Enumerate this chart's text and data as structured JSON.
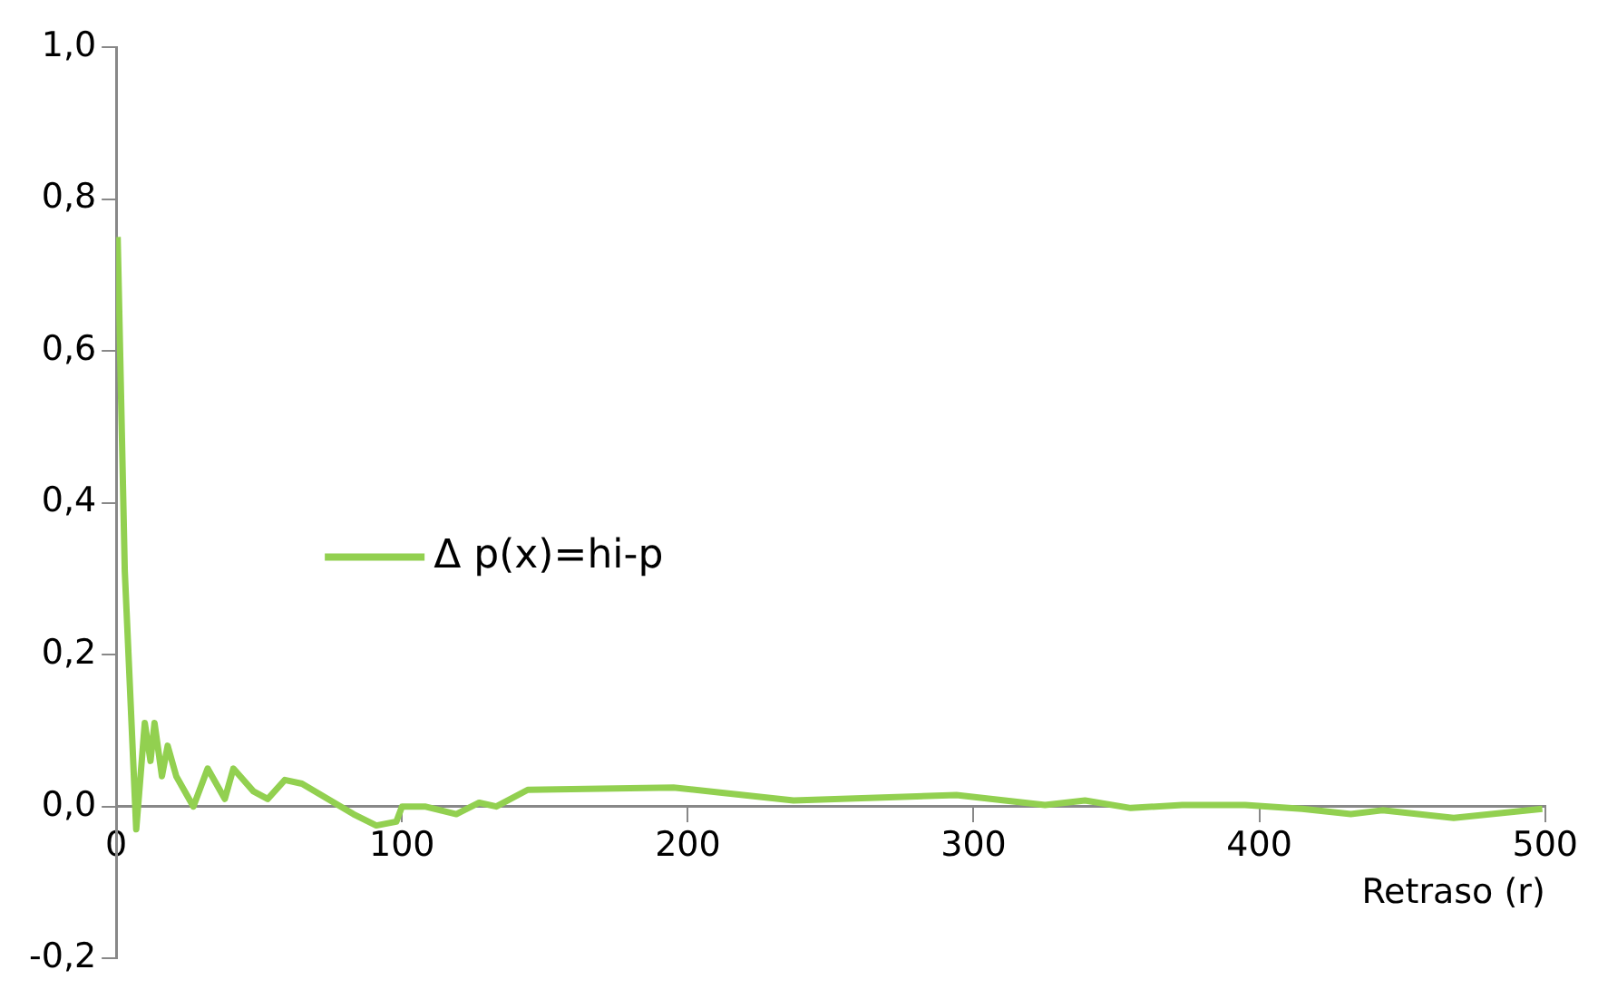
{
  "chart_data": {
    "type": "line",
    "xlabel": "Retraso (r)",
    "x": [
      0.5,
      3,
      7,
      10,
      12,
      13.4,
      16,
      18,
      21,
      27,
      32,
      38,
      41,
      48,
      53,
      59,
      65,
      74,
      83,
      91,
      98,
      100,
      108,
      119,
      127,
      133,
      144,
      195,
      212,
      237,
      294,
      325,
      339,
      355,
      373,
      395,
      415,
      432,
      443,
      468,
      499
    ],
    "series": [
      {
        "name": "Δ p(x)=hi-p",
        "color": "#92d050",
        "values": [
          0.75,
          0.31,
          -0.03,
          0.11,
          0.06,
          0.11,
          0.04,
          0.08,
          0.04,
          0,
          0.05,
          0.01,
          0.05,
          0.02,
          0.01,
          0.035,
          0.03,
          0.01,
          -0.01,
          -0.025,
          -0.02,
          0,
          0,
          -0.01,
          0.005,
          0,
          0.022,
          0.025,
          0.018,
          0.008,
          0.015,
          0.002,
          0.008,
          -0.002,
          0.002,
          0.002,
          -0.003,
          -0.01,
          -0.005,
          -0.015,
          -0.003
        ]
      }
    ],
    "xlim": [
      0,
      500
    ],
    "xticks": [
      0,
      100,
      200,
      300,
      400,
      500
    ],
    "ylim": [
      -0.2,
      1.0
    ],
    "yticks": [
      {
        "value": -0.2,
        "label": "-0,2"
      },
      {
        "value": 0,
        "label": "0,0"
      },
      {
        "value": 0.2,
        "label": "0,2"
      },
      {
        "value": 0.4,
        "label": "0,4"
      },
      {
        "value": 0.6,
        "label": "0,6"
      },
      {
        "value": 0.8,
        "label": "0,8"
      },
      {
        "value": 1.0,
        "label": "1,0"
      }
    ],
    "grid": false,
    "legend": "left",
    "marker": "none",
    "line_style": "solid"
  }
}
